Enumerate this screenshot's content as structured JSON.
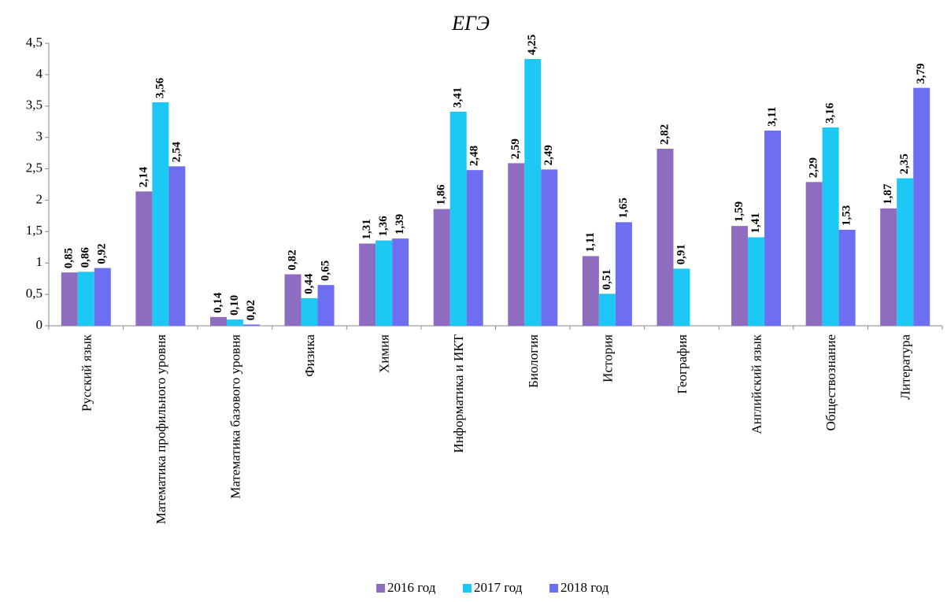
{
  "chart_data": {
    "type": "bar",
    "title": "ЕГЭ",
    "categories": [
      "Русский язык",
      "Математика профильного уровня",
      "Математика базового уровня",
      "Физика",
      "Химия",
      "Информатика и ИКТ",
      "Биология",
      "История",
      "География",
      "Английский язык",
      "Обществознание",
      "Литература"
    ],
    "series": [
      {
        "name": "2016 год",
        "color": "#8e6cc0",
        "values": [
          0.85,
          2.14,
          0.14,
          0.82,
          1.31,
          1.86,
          2.59,
          1.11,
          2.82,
          1.59,
          2.29,
          1.87
        ],
        "value_labels": [
          "0,85",
          "2,14",
          "0,14",
          "0,82",
          "1,31",
          "1,86",
          "2,59",
          "1,11",
          "2,82",
          "1,59",
          "2,29",
          "1,87"
        ]
      },
      {
        "name": "2017 год",
        "color": "#1ec8f5",
        "values": [
          0.86,
          3.56,
          0.1,
          0.44,
          1.36,
          3.41,
          4.25,
          0.51,
          0.91,
          1.41,
          3.16,
          2.35
        ],
        "value_labels": [
          "0,86",
          "3,56",
          "0,10",
          "0,44",
          "1,36",
          "3,41",
          "4,25",
          "0,51",
          "0,91",
          "1,41",
          "3,16",
          "2,35"
        ]
      },
      {
        "name": "2018 год",
        "color": "#6e6ef0",
        "values": [
          0.92,
          2.54,
          0.02,
          0.65,
          1.39,
          2.48,
          2.49,
          1.65,
          null,
          3.11,
          1.53,
          3.79
        ],
        "value_labels": [
          "0,92",
          "2,54",
          "0,02",
          "0,65",
          "1,39",
          "2,48",
          "2,49",
          "1,65",
          null,
          "3,11",
          "1,53",
          "3,79"
        ]
      }
    ],
    "ylim": [
      0,
      4.5
    ],
    "yticks": [
      0,
      {
        "value": 0.5,
        "label": "0,5"
      },
      1,
      {
        "value": 1.5,
        "label": "1,5"
      },
      2,
      {
        "value": 2.5,
        "label": "2,5"
      },
      3,
      {
        "value": 3.5,
        "label": "3,5"
      },
      4,
      {
        "value": 4.5,
        "label": "4,5"
      }
    ],
    "legend": "bottom"
  }
}
